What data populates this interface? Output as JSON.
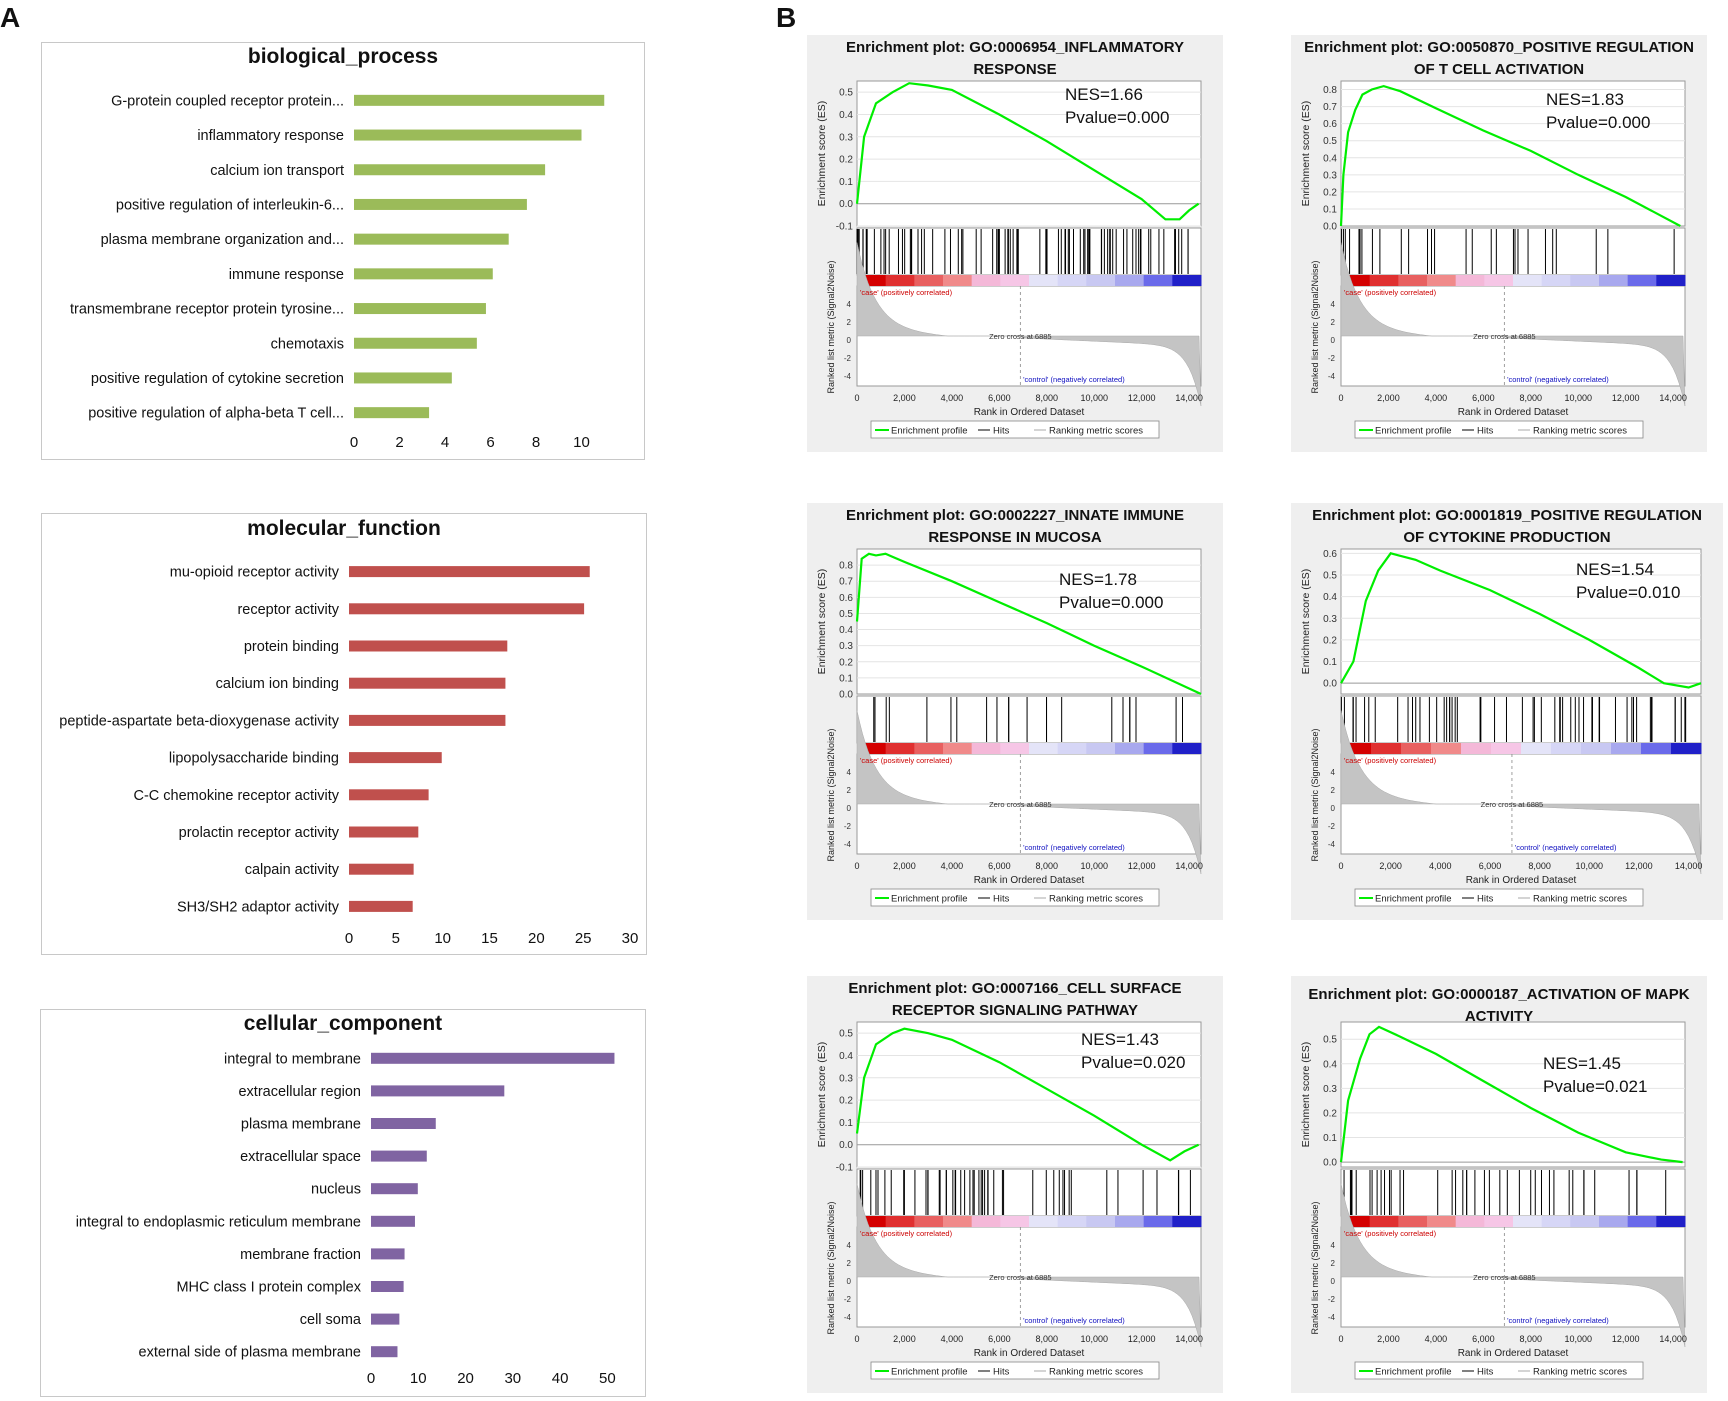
{
  "panel_labels": {
    "a": "A",
    "b": "B"
  },
  "colors": {
    "bp": "#9bbb59",
    "mf": "#c0504d",
    "cc": "#8064a2",
    "profile": "#00ee00",
    "hits": "#000000",
    "metric": "#c4c4c4",
    "pos": "#cc0000",
    "neg": "#1010c0"
  },
  "chart_data": [
    {
      "type": "bar",
      "orientation": "horizontal",
      "title": "biological_process",
      "categories": [
        "G-protein coupled receptor protein...",
        "inflammatory response",
        "calcium ion transport",
        "positive regulation of interleukin-6...",
        "plasma membrane organization and...",
        "immune response",
        "transmembrane receptor protein tyrosine...",
        "chemotaxis",
        "positive regulation of cytokine secretion",
        "positive regulation of alpha-beta T cell..."
      ],
      "values": [
        11,
        10,
        8.4,
        7.6,
        6.8,
        6.1,
        5.8,
        5.4,
        4.3,
        3.3
      ],
      "xlim": [
        0,
        12
      ],
      "xticks": [
        0,
        2,
        4,
        6,
        8,
        10
      ]
    },
    {
      "type": "bar",
      "orientation": "horizontal",
      "title": "molecular_function",
      "categories": [
        "mu-opioid receptor activity",
        "receptor activity",
        "protein binding",
        "calcium ion binding",
        "peptide-aspartate beta-dioxygenase activity",
        "lipopolysaccharide binding",
        "C-C chemokine receptor activity",
        "prolactin receptor activity",
        "calpain activity",
        "SH3/SH2 adaptor activity"
      ],
      "values": [
        25.7,
        25.1,
        16.9,
        16.7,
        16.7,
        9.9,
        8.5,
        7.4,
        6.9,
        6.8
      ],
      "xlim": [
        0,
        30
      ],
      "xticks": [
        0,
        5,
        10,
        15,
        20,
        25,
        30
      ]
    },
    {
      "type": "bar",
      "orientation": "horizontal",
      "title": "cellular_component",
      "categories": [
        "integral to membrane",
        "extracellular region",
        "plasma membrane",
        "extracellular space",
        "nucleus",
        "integral to endoplasmic reticulum membrane",
        "membrane fraction",
        "MHC class I protein complex",
        "cell soma",
        "external side of plasma membrane"
      ],
      "values": [
        51.5,
        28.2,
        13.7,
        11.8,
        9.9,
        9.3,
        7.1,
        6.9,
        6.0,
        5.6
      ],
      "xlim": [
        0,
        55
      ],
      "xticks": [
        0,
        10,
        20,
        30,
        40,
        50
      ]
    },
    {
      "type": "line",
      "title": "Enrichment plot: GO:0006954_INFLAMMATORY RESPONSE",
      "title_line1": "Enrichment plot: GO:0006954_INFLAMMATORY",
      "title_line2": "RESPONSE",
      "nes": "NES=1.66",
      "pvalue": "Pvalue=0.000",
      "ylim": [
        -0.1,
        0.55
      ],
      "yticks": [
        "0.5",
        "0.4",
        "0.3",
        "0.2",
        "0.1",
        "0.0",
        "-0.1"
      ],
      "x": [
        0,
        300,
        800,
        1500,
        2200,
        3000,
        4000,
        6000,
        8000,
        10000,
        12000,
        13000,
        13600,
        14000,
        14400
      ],
      "y": [
        0.0,
        0.3,
        0.45,
        0.5,
        0.54,
        0.53,
        0.51,
        0.4,
        0.28,
        0.15,
        0.02,
        -0.07,
        -0.07,
        -0.03,
        0.0
      ]
    },
    {
      "type": "line",
      "title": "Enrichment plot: GO:0050870_POSITIVE REGULATION OF T CELL ACTIVATION",
      "title_line1": "Enrichment plot: GO:0050870_POSITIVE REGULATION",
      "title_line2": "OF T CELL ACTIVATION",
      "nes": "NES=1.83",
      "pvalue": "Pvalue=0.000",
      "ylim": [
        0.0,
        0.85
      ],
      "yticks": [
        "0.8",
        "0.7",
        "0.6",
        "0.5",
        "0.4",
        "0.3",
        "0.2",
        "0.1",
        "0.0"
      ],
      "x": [
        0,
        100,
        300,
        600,
        900,
        1300,
        1800,
        2500,
        4000,
        6000,
        8000,
        10000,
        12000,
        14300
      ],
      "y": [
        0.0,
        0.3,
        0.55,
        0.68,
        0.77,
        0.8,
        0.82,
        0.79,
        0.69,
        0.56,
        0.44,
        0.3,
        0.17,
        0.0
      ]
    },
    {
      "type": "line",
      "title": "Enrichment plot: GO:0002227_INNATE IMMUNE RESPONSE IN MUCOSA",
      "title_line1": "Enrichment plot: GO:0002227_INNATE IMMUNE",
      "title_line2": "RESPONSE IN MUCOSA",
      "nes": "NES=1.78",
      "pvalue": "Pvalue=0.000",
      "ylim": [
        0.0,
        0.9
      ],
      "yticks": [
        "0.8",
        "0.7",
        "0.6",
        "0.5",
        "0.4",
        "0.3",
        "0.2",
        "0.1",
        "0.0"
      ],
      "x": [
        0,
        200,
        500,
        800,
        1200,
        2000,
        4000,
        6000,
        8000,
        10000,
        12000,
        14500
      ],
      "y": [
        0.45,
        0.84,
        0.87,
        0.86,
        0.87,
        0.82,
        0.7,
        0.57,
        0.44,
        0.3,
        0.17,
        0.0
      ]
    },
    {
      "type": "line",
      "title": "Enrichment plot: GO:0001819_POSITIVE REGULATION OF CYTOKINE PRODUCTION",
      "title_line1": "Enrichment plot: GO:0001819_POSITIVE REGULATION",
      "title_line2": "OF CYTOKINE PRODUCTION",
      "nes": "NES=1.54",
      "pvalue": "Pvalue=0.010",
      "ylim": [
        -0.05,
        0.62
      ],
      "yticks": [
        "0.6",
        "0.5",
        "0.4",
        "0.3",
        "0.2",
        "0.1",
        "0.0"
      ],
      "x": [
        0,
        500,
        1000,
        1500,
        2000,
        3000,
        4000,
        6000,
        8000,
        10000,
        12000,
        13000,
        14000,
        14500
      ],
      "y": [
        0.0,
        0.1,
        0.38,
        0.52,
        0.6,
        0.57,
        0.52,
        0.43,
        0.32,
        0.2,
        0.07,
        0.0,
        -0.02,
        0.0
      ]
    },
    {
      "type": "line",
      "title": "Enrichment plot: GO:0007166_CELL SURFACE RECEPTOR SIGNALING PATHWAY",
      "title_line1": "Enrichment plot: GO:0007166_CELL SURFACE",
      "title_line2": "RECEPTOR SIGNALING PATHWAY",
      "nes": "NES=1.43",
      "pvalue": "Pvalue=0.020",
      "ylim": [
        -0.1,
        0.55
      ],
      "yticks": [
        "0.5",
        "0.4",
        "0.3",
        "0.2",
        "0.1",
        "0.0",
        "-0.1"
      ],
      "x": [
        0,
        300,
        800,
        1500,
        2000,
        3000,
        4000,
        6000,
        8000,
        10000,
        12000,
        13200,
        13800,
        14400
      ],
      "y": [
        0.05,
        0.3,
        0.45,
        0.5,
        0.52,
        0.5,
        0.47,
        0.37,
        0.25,
        0.13,
        0.0,
        -0.07,
        -0.03,
        0.0
      ]
    },
    {
      "type": "line",
      "title": "Enrichment plot: GO:0000187_ACTIVATION OF MAPK ACTIVITY",
      "title_line1": "Enrichment plot: GO:0000187_ACTIVATION OF MAPK",
      "title_line2": "ACTIVITY",
      "nes": "NES=1.45",
      "pvalue": "Pvalue=0.021",
      "ylim": [
        -0.02,
        0.57
      ],
      "yticks": [
        "0.5",
        "0.4",
        "0.3",
        "0.2",
        "0.1",
        "0.0"
      ],
      "x": [
        0,
        300,
        800,
        1200,
        1600,
        2500,
        4000,
        6000,
        8000,
        10000,
        12000,
        13500,
        14400
      ],
      "y": [
        0.0,
        0.25,
        0.42,
        0.52,
        0.55,
        0.51,
        0.44,
        0.33,
        0.22,
        0.12,
        0.04,
        0.01,
        0.0
      ]
    }
  ],
  "gsea_labels": {
    "y_es": "Enrichment score (ES)",
    "y_metric": "Ranked list metric (Signal2Noise)",
    "x_label": "Rank in Ordered Dataset",
    "x_ticks": [
      "0",
      "2,000",
      "4,000",
      "6,000",
      "8,000",
      "10,000",
      "12,000",
      "14,000"
    ],
    "metric_ticks": [
      "4",
      "2",
      "0",
      "-2",
      "-4"
    ],
    "case_label": "'case' (positively correlated)",
    "control_label": "'control' (negatively correlated)",
    "zero_cross": "Zero cross at 6885",
    "legend": {
      "profile": "Enrichment profile",
      "hits": "Hits",
      "metric": "Ranking metric scores"
    }
  }
}
